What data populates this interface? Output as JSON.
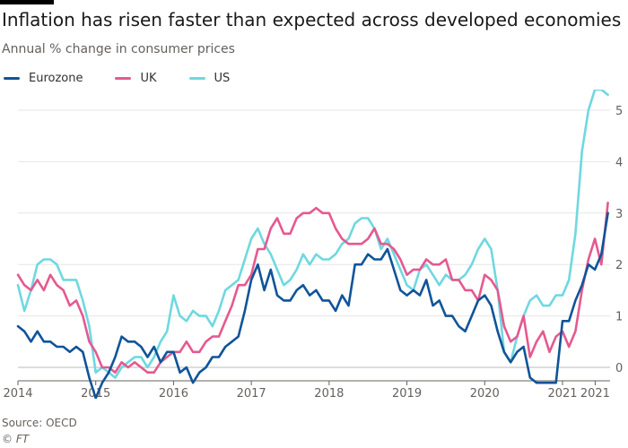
{
  "header": {
    "title": "Inflation has risen faster than expected across developed economies",
    "subtitle": "Annual % change in consumer prices"
  },
  "footer": {
    "source": "Source: OECD",
    "credit": "© FT"
  },
  "colors": {
    "eurozone": "#0f5499",
    "uk": "#e5598f",
    "us": "#6fd8e0",
    "grid": "#e6e6e6",
    "zero": "#bbbbbb"
  },
  "chart_data": {
    "type": "line",
    "title": "Inflation has risen faster than expected across developed economies",
    "ylabel": "Annual % change in consumer prices",
    "xlabel": "",
    "ylim": [
      -0.7,
      5.5
    ],
    "xlim": [
      2014.0,
      2021.42
    ],
    "y_ticks": [
      0,
      1,
      2,
      3,
      4,
      5
    ],
    "y_tick_labels": [
      "0",
      "1",
      "2",
      "3",
      "4",
      "5"
    ],
    "x_ticks": [
      2014,
      2015,
      2016,
      2017,
      2018,
      2019,
      2020,
      2021,
      2021.42
    ],
    "x_tick_labels": [
      "2014",
      "2015",
      "2016",
      "2017",
      "2018",
      "2019",
      "2020",
      "2021",
      "2021"
    ],
    "grid": true,
    "legend": "top-left",
    "series": [
      {
        "name": "Eurozone",
        "key": "eurozone",
        "start": 2014.0,
        "step": 0.08333,
        "values": [
          0.8,
          0.7,
          0.5,
          0.7,
          0.5,
          0.5,
          0.4,
          0.4,
          0.3,
          0.4,
          0.3,
          -0.2,
          -0.6,
          -0.3,
          -0.1,
          0.2,
          0.6,
          0.5,
          0.5,
          0.4,
          0.2,
          0.4,
          0.1,
          0.3,
          0.3,
          -0.1,
          0.0,
          -0.3,
          -0.1,
          0.0,
          0.2,
          0.2,
          0.4,
          0.5,
          0.6,
          1.1,
          1.7,
          2.0,
          1.5,
          1.9,
          1.4,
          1.3,
          1.3,
          1.5,
          1.6,
          1.4,
          1.5,
          1.3,
          1.3,
          1.1,
          1.4,
          1.2,
          2.0,
          2.0,
          2.2,
          2.1,
          2.1,
          2.3,
          1.9,
          1.5,
          1.4,
          1.5,
          1.4,
          1.7,
          1.2,
          1.3,
          1.0,
          1.0,
          0.8,
          0.7,
          1.0,
          1.3,
          1.4,
          1.2,
          0.7,
          0.3,
          0.1,
          0.3,
          0.4,
          -0.2,
          -0.3,
          -0.3,
          -0.3,
          -0.3,
          0.9,
          0.9,
          1.3,
          1.6,
          2.0,
          1.9,
          2.2,
          3.0
        ]
      },
      {
        "name": "UK",
        "key": "uk",
        "start": 2014.0,
        "step": 0.08333,
        "values": [
          1.8,
          1.6,
          1.5,
          1.7,
          1.5,
          1.8,
          1.6,
          1.5,
          1.2,
          1.3,
          1.0,
          0.5,
          0.3,
          0.0,
          0.0,
          -0.1,
          0.1,
          0.0,
          0.1,
          0.0,
          -0.1,
          -0.1,
          0.1,
          0.2,
          0.3,
          0.3,
          0.5,
          0.3,
          0.3,
          0.5,
          0.6,
          0.6,
          0.9,
          1.2,
          1.6,
          1.6,
          1.8,
          2.3,
          2.3,
          2.7,
          2.9,
          2.6,
          2.6,
          2.9,
          3.0,
          3.0,
          3.1,
          3.0,
          3.0,
          2.7,
          2.5,
          2.4,
          2.4,
          2.4,
          2.5,
          2.7,
          2.4,
          2.4,
          2.3,
          2.1,
          1.8,
          1.9,
          1.9,
          2.1,
          2.0,
          2.0,
          2.1,
          1.7,
          1.7,
          1.5,
          1.5,
          1.3,
          1.8,
          1.7,
          1.5,
          0.8,
          0.5,
          0.6,
          1.0,
          0.2,
          0.5,
          0.7,
          0.3,
          0.6,
          0.7,
          0.4,
          0.7,
          1.5,
          2.1,
          2.5,
          2.0,
          3.2
        ]
      },
      {
        "name": "US",
        "key": "us",
        "start": 2014.0,
        "step": 0.08333,
        "values": [
          1.6,
          1.1,
          1.5,
          2.0,
          2.1,
          2.1,
          2.0,
          1.7,
          1.7,
          1.7,
          1.3,
          0.8,
          -0.1,
          0.0,
          -0.1,
          -0.2,
          0.0,
          0.1,
          0.2,
          0.2,
          0.0,
          0.2,
          0.5,
          0.7,
          1.4,
          1.0,
          0.9,
          1.1,
          1.0,
          1.0,
          0.8,
          1.1,
          1.5,
          1.6,
          1.7,
          2.1,
          2.5,
          2.7,
          2.4,
          2.2,
          1.9,
          1.6,
          1.7,
          1.9,
          2.2,
          2.0,
          2.2,
          2.1,
          2.1,
          2.2,
          2.4,
          2.5,
          2.8,
          2.9,
          2.9,
          2.7,
          2.3,
          2.5,
          2.2,
          1.9,
          1.6,
          1.5,
          1.9,
          2.0,
          1.8,
          1.6,
          1.8,
          1.7,
          1.7,
          1.8,
          2.0,
          2.3,
          2.5,
          2.3,
          1.5,
          0.3,
          0.1,
          0.6,
          1.0,
          1.3,
          1.4,
          1.2,
          1.2,
          1.4,
          1.4,
          1.7,
          2.6,
          4.2,
          5.0,
          5.4,
          5.4,
          5.3
        ]
      }
    ]
  }
}
